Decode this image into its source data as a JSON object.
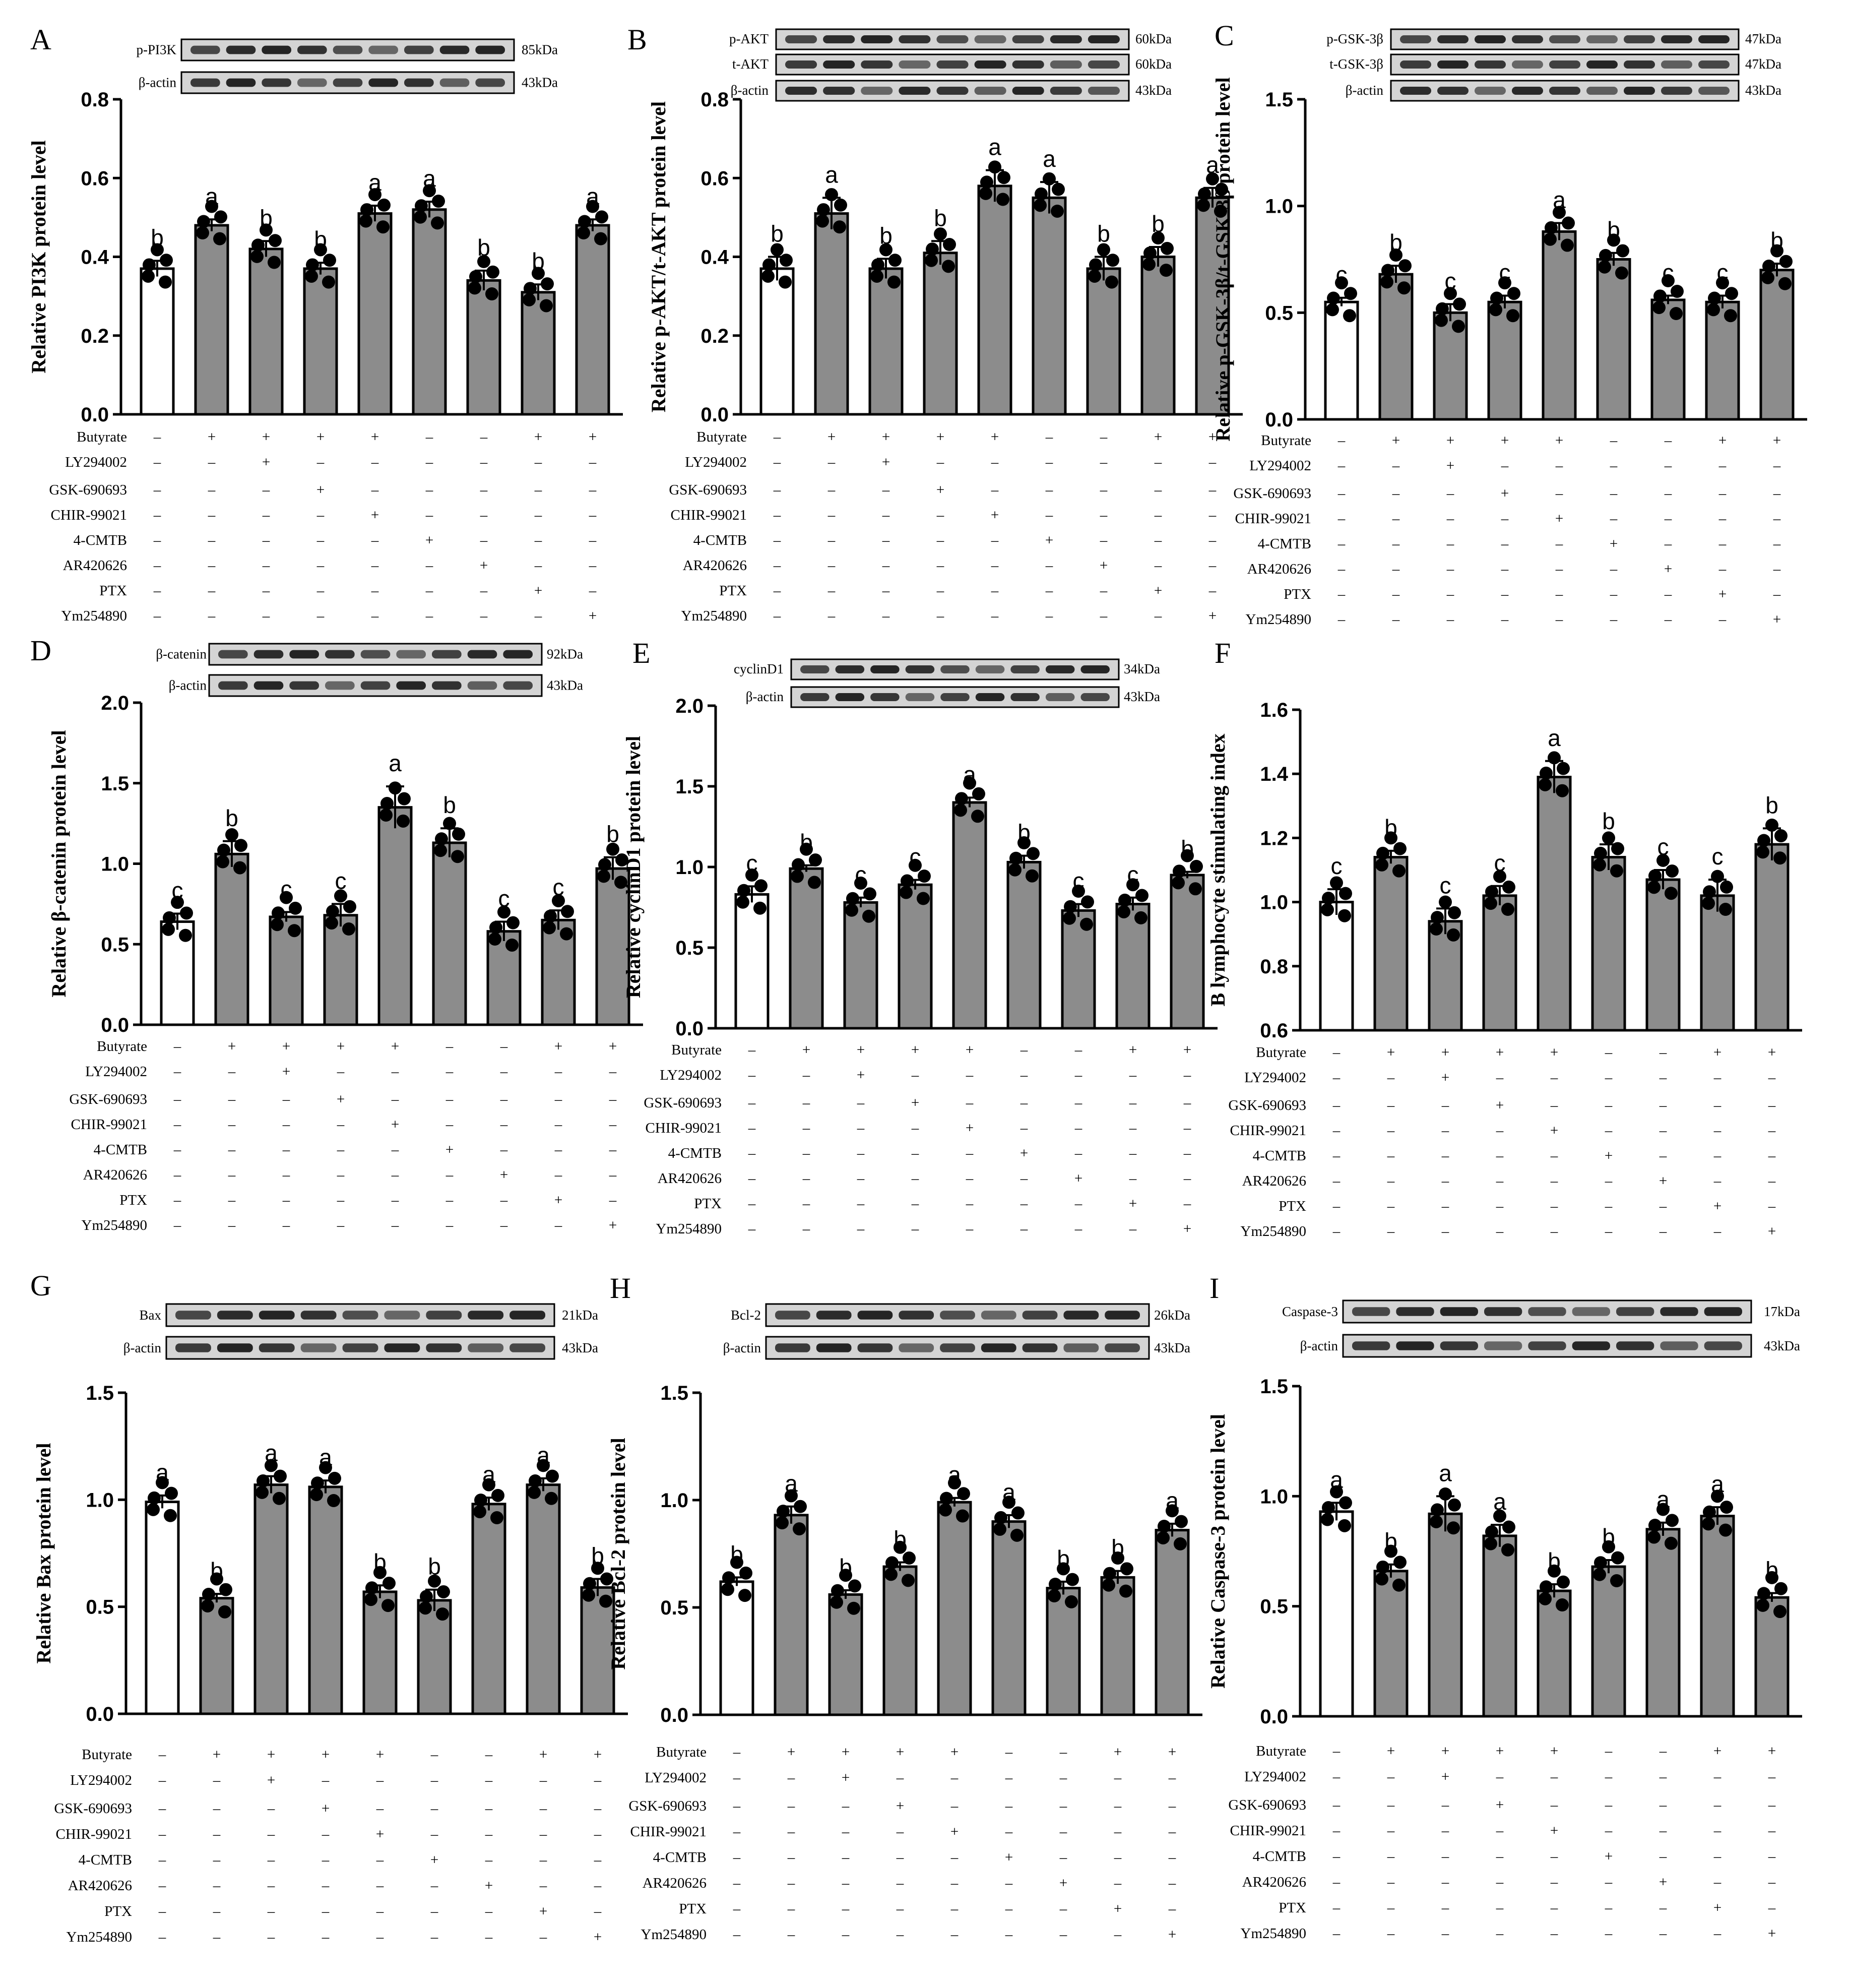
{
  "treatment_labels": [
    "Butyrate",
    "LY294002",
    "GSK-690693",
    "CHIR-99021",
    "4-CMTB",
    "AR420626",
    "PTX",
    "Ym254890"
  ],
  "treatment_signs": [
    [
      "–",
      "+",
      "+",
      "+",
      "+",
      "–",
      "–",
      "+",
      "+"
    ],
    [
      "–",
      "–",
      "+",
      "–",
      "–",
      "–",
      "–",
      "–",
      "–"
    ],
    [
      "–",
      "–",
      "–",
      "+",
      "–",
      "–",
      "–",
      "–",
      "–"
    ],
    [
      "–",
      "–",
      "–",
      "–",
      "+",
      "–",
      "–",
      "–",
      "–"
    ],
    [
      "–",
      "–",
      "–",
      "–",
      "–",
      "+",
      "–",
      "–",
      "–"
    ],
    [
      "–",
      "–",
      "–",
      "–",
      "–",
      "–",
      "+",
      "–",
      "–"
    ],
    [
      "–",
      "–",
      "–",
      "–",
      "–",
      "–",
      "–",
      "+",
      "–"
    ],
    [
      "–",
      "–",
      "–",
      "–",
      "–",
      "–",
      "–",
      "–",
      "+"
    ]
  ],
  "colors": {
    "control_bar": "#ffffff",
    "treated_bar": "#8c8c8c",
    "edge": "#000000",
    "blot_band": "#1a1a1a",
    "blot_bg": "#d4d4d4"
  },
  "chart_data": [
    {
      "panel": "A",
      "type": "bar",
      "ylabel": "Relative PI3K protein level",
      "ylim": [
        0,
        0.8
      ],
      "yticks": [
        "0.0",
        "0.2",
        "0.4",
        "0.6",
        "0.8"
      ],
      "values": [
        0.37,
        0.48,
        0.42,
        0.37,
        0.51,
        0.52,
        0.34,
        0.31,
        0.48
      ],
      "errors": [
        0.02,
        0.015,
        0.02,
        0.015,
        0.02,
        0.02,
        0.025,
        0.02,
        0.015
      ],
      "letters": [
        "b",
        "a",
        "b",
        "b",
        "a",
        "a",
        "b",
        "b",
        "a"
      ],
      "blots": [
        {
          "label": "p-PI3K",
          "kda": "85kDa"
        },
        {
          "label": "β-actin",
          "kda": "43kDa"
        }
      ]
    },
    {
      "panel": "B",
      "type": "bar",
      "ylabel": "Relative p-AKT/t-AKT protein level",
      "ylim": [
        0,
        0.8
      ],
      "yticks": [
        "0.0",
        "0.2",
        "0.4",
        "0.6",
        "0.8"
      ],
      "values": [
        0.37,
        0.51,
        0.37,
        0.41,
        0.58,
        0.55,
        0.37,
        0.4,
        0.55
      ],
      "errors": [
        0.03,
        0.04,
        0.025,
        0.03,
        0.04,
        0.04,
        0.03,
        0.025,
        0.025
      ],
      "letters": [
        "b",
        "a",
        "b",
        "b",
        "a",
        "a",
        "b",
        "b",
        "a"
      ],
      "blots": [
        {
          "label": "p-AKT",
          "kda": "60kDa"
        },
        {
          "label": "t-AKT",
          "kda": "60kDa"
        },
        {
          "label": "β-actin",
          "kda": "43kDa"
        }
      ]
    },
    {
      "panel": "C",
      "type": "bar",
      "ylabel": "Relative p-GSK-3β/t-GSK-3β protein level",
      "ylim": [
        0,
        1.5
      ],
      "yticks": [
        "0.0",
        "0.5",
        "1.0",
        "1.5"
      ],
      "values": [
        0.55,
        0.68,
        0.5,
        0.55,
        0.88,
        0.75,
        0.56,
        0.55,
        0.7
      ],
      "errors": [
        0.02,
        0.04,
        0.04,
        0.03,
        0.04,
        0.03,
        0.02,
        0.03,
        0.03
      ],
      "letters": [
        "c",
        "b",
        "c",
        "c",
        "a",
        "b",
        "c",
        "c",
        "b"
      ],
      "blots": [
        {
          "label": "p-GSK-3β",
          "kda": "47kDa"
        },
        {
          "label": "t-GSK-3β",
          "kda": "47kDa"
        },
        {
          "label": "β-actin",
          "kda": "43kDa"
        }
      ]
    },
    {
      "panel": "D",
      "type": "bar",
      "ylabel": "Relative β-catenin protein level",
      "ylim": [
        0,
        2.0
      ],
      "yticks": [
        "0.0",
        "0.5",
        "1.0",
        "1.5",
        "2.0"
      ],
      "values": [
        0.64,
        1.06,
        0.67,
        0.68,
        1.35,
        1.13,
        0.58,
        0.65,
        0.97
      ],
      "errors": [
        0.05,
        0.08,
        0.03,
        0.07,
        0.13,
        0.09,
        0.06,
        0.06,
        0.07
      ],
      "letters": [
        "c",
        "b",
        "c",
        "c",
        "a",
        "b",
        "c",
        "c",
        "b"
      ],
      "blots": [
        {
          "label": "β-catenin",
          "kda": "92kDa"
        },
        {
          "label": "β-actin",
          "kda": "43kDa"
        }
      ]
    },
    {
      "panel": "E",
      "type": "bar",
      "ylabel": "Relative cyclinD1 protein level",
      "ylim": [
        0,
        2.0
      ],
      "yticks": [
        "0.0",
        "0.5",
        "1.0",
        "1.5",
        "2.0"
      ],
      "values": [
        0.83,
        0.99,
        0.78,
        0.89,
        1.4,
        1.03,
        0.73,
        0.77,
        0.95
      ],
      "errors": [
        0.05,
        0.02,
        0.03,
        0.03,
        0.03,
        0.04,
        0.04,
        0.04,
        0.02
      ],
      "letters": [
        "c",
        "b",
        "c",
        "c",
        "a",
        "b",
        "c",
        "c",
        "b"
      ],
      "blots": [
        {
          "label": "cyclinD1",
          "kda": "34kDa"
        },
        {
          "label": "β-actin",
          "kda": "43kDa"
        }
      ]
    },
    {
      "panel": "F",
      "type": "bar",
      "ylabel": "B lymphocyte stimulating index",
      "ylim": [
        0.6,
        1.6
      ],
      "yticks": [
        "0.6",
        "0.8",
        "1.0",
        "1.2",
        "1.4",
        "1.6"
      ],
      "values": [
        1.0,
        1.14,
        0.94,
        1.02,
        1.39,
        1.14,
        1.07,
        1.02,
        1.18
      ],
      "errors": [
        0.04,
        0.02,
        0.04,
        0.03,
        0.05,
        0.04,
        0.03,
        0.05,
        0.05
      ],
      "letters": [
        "c",
        "b",
        "c",
        "c",
        "a",
        "b",
        "c",
        "c",
        "b"
      ],
      "blots": []
    },
    {
      "panel": "G",
      "type": "bar",
      "ylabel": "Relative Bax protein level",
      "ylim": [
        0,
        1.5
      ],
      "yticks": [
        "0.0",
        "0.5",
        "1.0",
        "1.5"
      ],
      "values": [
        0.99,
        0.54,
        1.07,
        1.06,
        0.57,
        0.53,
        0.98,
        1.07,
        0.59
      ],
      "errors": [
        0.03,
        0.02,
        0.04,
        0.03,
        0.03,
        0.05,
        0.03,
        0.03,
        0.04
      ],
      "letters": [
        "a",
        "b",
        "a",
        "a",
        "b",
        "b",
        "a",
        "a",
        "b"
      ],
      "blots": [
        {
          "label": "Bax",
          "kda": "21kDa"
        },
        {
          "label": "β-actin",
          "kda": "43kDa"
        }
      ]
    },
    {
      "panel": "H",
      "type": "bar",
      "ylabel": "Relative Bcl-2 protein level",
      "ylim": [
        0,
        1.5
      ],
      "yticks": [
        "0.0",
        "0.5",
        "1.0",
        "1.5"
      ],
      "values": [
        0.62,
        0.93,
        0.56,
        0.69,
        0.99,
        0.9,
        0.59,
        0.64,
        0.86
      ],
      "errors": [
        0.02,
        0.04,
        0.02,
        0.02,
        0.02,
        0.03,
        0.03,
        0.03,
        0.03
      ],
      "letters": [
        "b",
        "a",
        "b",
        "b",
        "a",
        "a",
        "b",
        "b",
        "a"
      ],
      "blots": [
        {
          "label": "Bcl-2",
          "kda": "26kDa"
        },
        {
          "label": "β-actin",
          "kda": "43kDa"
        }
      ]
    },
    {
      "panel": "I",
      "type": "bar",
      "ylabel": "Relative Caspase-3 protein level",
      "ylim": [
        0,
        1.5
      ],
      "yticks": [
        "0.0",
        "0.5",
        "1.0",
        "1.5"
      ],
      "values": [
        0.93,
        0.66,
        0.92,
        0.82,
        0.57,
        0.68,
        0.85,
        0.91,
        0.54
      ],
      "errors": [
        0.04,
        0.03,
        0.08,
        0.05,
        0.03,
        0.03,
        0.03,
        0.04,
        0.02
      ],
      "letters": [
        "a",
        "b",
        "a",
        "a",
        "b",
        "b",
        "a",
        "a",
        "b"
      ],
      "blots": [
        {
          "label": "Caspase-3",
          "kda": "17kDa"
        },
        {
          "label": "β-actin",
          "kda": "43kDa"
        }
      ]
    }
  ]
}
